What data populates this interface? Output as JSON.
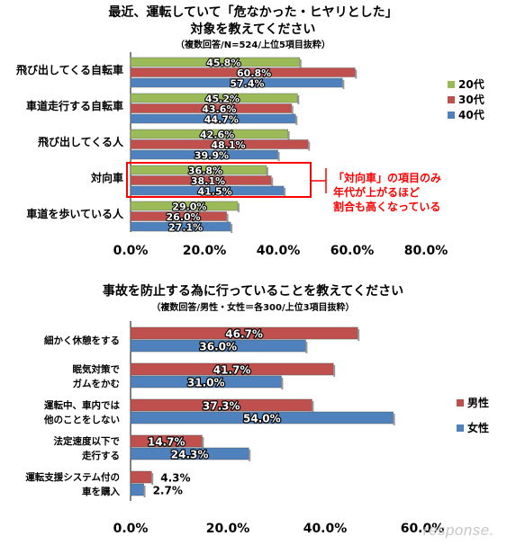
{
  "chart_data": [
    {
      "type": "bar",
      "orientation": "horizontal",
      "title": "最近、運転していて「危なかった・ヒヤリとした」",
      "title2": "対象を教えてください",
      "subtitle": "（複数回答/N=524/上位5項目抜粋）",
      "categories": [
        "飛び出してくる自転車",
        "車道走行する自転車",
        "飛び出してくる人",
        "対向車",
        "車道を歩いている人"
      ],
      "series": [
        {
          "name": "20代",
          "color": "#9bbb59",
          "values": [
            45.8,
            45.2,
            42.6,
            36.8,
            29.0
          ],
          "labels": [
            "45.8%",
            "45.2%",
            "42.6%",
            "36.8%",
            "29.0%"
          ]
        },
        {
          "name": "30代",
          "color": "#c0504d",
          "values": [
            60.8,
            43.6,
            48.1,
            38.1,
            26.0
          ],
          "labels": [
            "60.8%",
            "43.6%",
            "48.1%",
            "38.1%",
            "26.0%"
          ]
        },
        {
          "name": "40代",
          "color": "#4f81bd",
          "values": [
            57.4,
            44.7,
            39.9,
            41.5,
            27.1
          ],
          "labels": [
            "57.4%",
            "44.7%",
            "39.9%",
            "41.5%",
            "27.1%"
          ]
        }
      ],
      "xlim": [
        0,
        80
      ],
      "ticks": [
        "0.0%",
        "20.0%",
        "40.0%",
        "60.0%",
        "80.0%"
      ],
      "annotation": [
        "「対向車」の項目のみ",
        "年代が上がるほど",
        "割合も高くなっている"
      ],
      "annotation_color": "#ff0000",
      "legend": "right"
    },
    {
      "type": "bar",
      "orientation": "horizontal",
      "title": "事故を防止する為に行っていることを教えてください",
      "subtitle": "（複数回答/男性・女性＝各300/上位3項目抜粋）",
      "categories": [
        [
          "細かく休憩をする"
        ],
        [
          "眠気対策で",
          "ガムをかむ"
        ],
        [
          "運転中、車内では",
          "他のことをしない"
        ],
        [
          "法定速度以下で",
          "走行する"
        ],
        [
          "運転支援システム付の",
          "車を購入"
        ]
      ],
      "series": [
        {
          "name": "男性",
          "color": "#c0504d",
          "values": [
            46.7,
            41.7,
            37.3,
            14.7,
            4.3
          ],
          "labels": [
            "46.7%",
            "41.7%",
            "37.3%",
            "14.7%",
            "4.3%"
          ]
        },
        {
          "name": "女性",
          "color": "#4f81bd",
          "values": [
            36.0,
            31.0,
            54.0,
            24.3,
            2.7
          ],
          "labels": [
            "36.0%",
            "31.0%",
            "54.0%",
            "24.3%",
            "2.7%"
          ]
        }
      ],
      "xlim": [
        0,
        60
      ],
      "ticks": [
        "0.0%",
        "20.0%",
        "40.0%",
        "60.0%"
      ],
      "legend": "right"
    }
  ],
  "watermark": "response."
}
